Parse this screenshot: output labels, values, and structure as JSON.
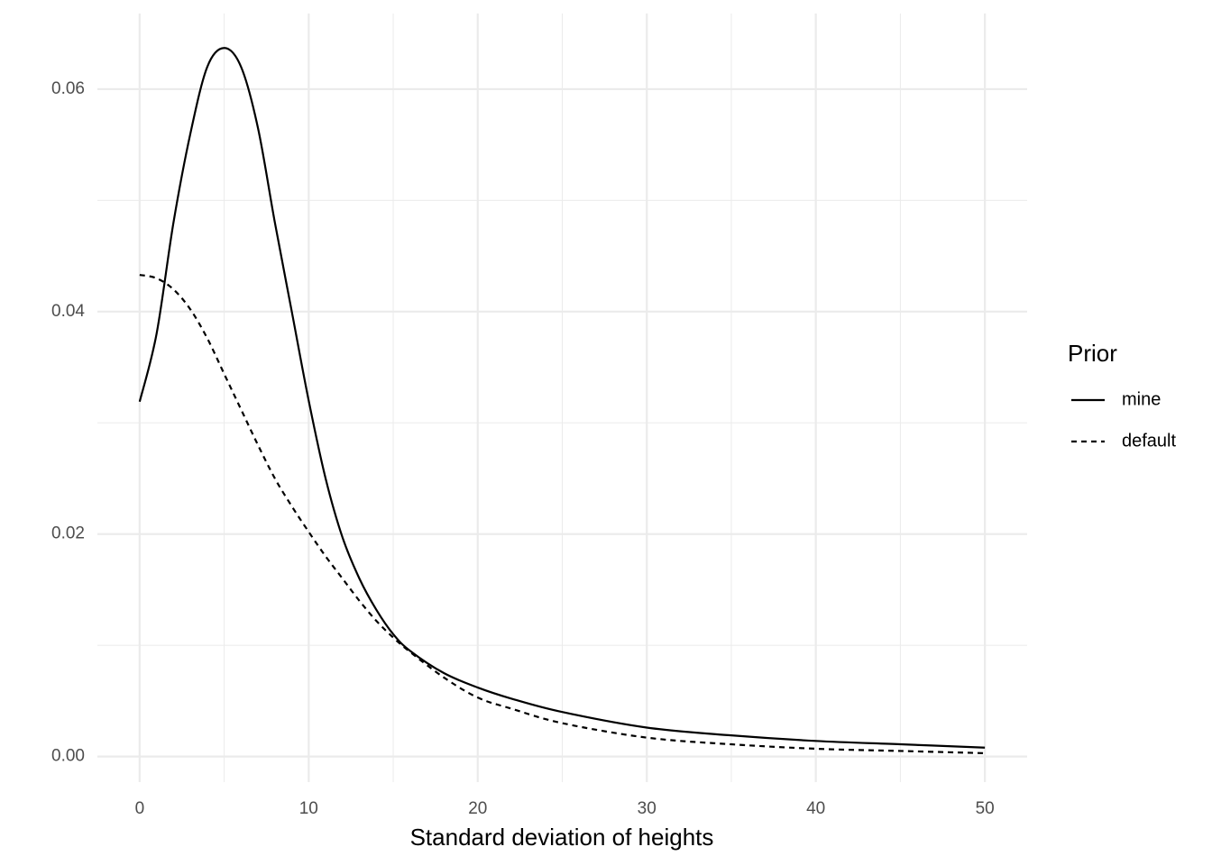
{
  "chart_data": {
    "type": "line",
    "x_label": "Standard deviation of heights",
    "x": [
      0,
      1,
      2,
      3,
      4,
      5,
      6,
      7,
      8,
      9,
      10,
      11,
      12,
      13,
      14,
      15,
      16,
      18,
      20,
      22,
      25,
      30,
      35,
      40,
      45,
      50
    ],
    "series": [
      {
        "name": "mine",
        "color": "#000000",
        "dash": "solid",
        "values": [
          0.0319,
          0.038,
          0.048,
          0.056,
          0.062,
          0.0637,
          0.062,
          0.0565,
          0.048,
          0.04,
          0.032,
          0.025,
          0.0197,
          0.016,
          0.0132,
          0.011,
          0.0095,
          0.0075,
          0.0062,
          0.0052,
          0.004,
          0.0026,
          0.0019,
          0.0014,
          0.0011,
          0.0008
        ]
      },
      {
        "name": "default",
        "color": "#000000",
        "dash": "dashed",
        "values": [
          0.0433,
          0.043,
          0.042,
          0.0402,
          0.0376,
          0.0344,
          0.0312,
          0.028,
          0.025,
          0.0225,
          0.0202,
          0.018,
          0.016,
          0.014,
          0.0122,
          0.0107,
          0.0094,
          0.0071,
          0.0053,
          0.0043,
          0.003,
          0.0017,
          0.0011,
          0.0007,
          0.0005,
          0.0003
        ]
      }
    ],
    "legend_title": "Prior",
    "legend": "right",
    "xlim": [
      -2.5,
      52.5
    ],
    "ylim": [
      -0.0023,
      0.0668
    ],
    "xticks": [
      0,
      10,
      20,
      30,
      40,
      50
    ],
    "yticks": [
      {
        "value": 0,
        "label": "0.00"
      },
      0.02,
      0.04,
      0.06
    ],
    "x_minor_grid": [
      5,
      15,
      25,
      35,
      45
    ],
    "y_minor_grid": [
      0.01,
      0.03,
      0.05
    ],
    "grid": true
  }
}
